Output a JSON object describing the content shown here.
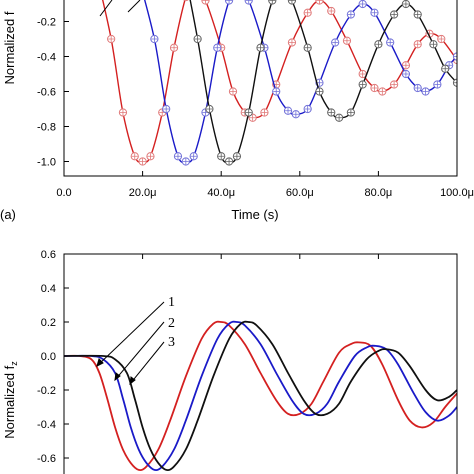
{
  "chart_data": [
    {
      "type": "line",
      "panel_label": "(a)",
      "xlabel": "Time (s)",
      "ylabel": "Normalized f",
      "xlim": [
        0,
        100
      ],
      "ylim": [
        -1.1,
        0
      ],
      "x_ticks": [
        0,
        20,
        40,
        60,
        80,
        100
      ],
      "x_tick_labels": [
        "0.0",
        "20.0μ",
        "40.0μ",
        "60.0μ",
        "80.0μ",
        "100.0μ"
      ],
      "y_ticks": [
        -0.2,
        -0.4,
        -0.6,
        -0.8,
        -1.0
      ],
      "y_tick_labels": [
        "-0.2",
        "-0.4",
        "-0.6",
        "-0.8",
        "-1.0"
      ],
      "marker": "circle-plus",
      "series": [
        {
          "color": "#d42020",
          "marker_color": "#e07878",
          "points": [
            [
              8,
              0.1
            ],
            [
              12,
              -0.3
            ],
            [
              15,
              -0.72
            ],
            [
              18,
              -0.97
            ],
            [
              20,
              -1.0
            ],
            [
              22,
              -0.97
            ],
            [
              25,
              -0.72
            ],
            [
              28,
              -0.35
            ],
            [
              31,
              -0.06
            ],
            [
              33,
              0.02
            ],
            [
              36,
              -0.08
            ],
            [
              40,
              -0.35
            ],
            [
              43,
              -0.6
            ],
            [
              46,
              -0.72
            ],
            [
              48,
              -0.75
            ],
            [
              51,
              -0.72
            ],
            [
              54,
              -0.56
            ],
            [
              58,
              -0.32
            ],
            [
              62,
              -0.15
            ],
            [
              65,
              -0.08
            ],
            [
              68,
              -0.14
            ],
            [
              72,
              -0.31
            ],
            [
              76,
              -0.5
            ],
            [
              79,
              -0.58
            ],
            [
              81,
              -0.6
            ],
            [
              84,
              -0.56
            ],
            [
              87,
              -0.45
            ],
            [
              90,
              -0.33
            ],
            [
              93,
              -0.27
            ],
            [
              96,
              -0.3
            ],
            [
              100,
              -0.42
            ]
          ]
        },
        {
          "color": "#1a1ac8",
          "marker_color": "#7070d8",
          "points": [
            [
              19,
              0.05
            ],
            [
              23,
              -0.3
            ],
            [
              26,
              -0.7
            ],
            [
              29,
              -0.97
            ],
            [
              31,
              -1.0
            ],
            [
              33,
              -0.97
            ],
            [
              36,
              -0.72
            ],
            [
              39,
              -0.35
            ],
            [
              42,
              -0.08
            ],
            [
              44,
              0.0
            ],
            [
              47,
              -0.08
            ],
            [
              51,
              -0.35
            ],
            [
              54,
              -0.6
            ],
            [
              57,
              -0.71
            ],
            [
              59,
              -0.73
            ],
            [
              62,
              -0.7
            ],
            [
              65,
              -0.55
            ],
            [
              69,
              -0.32
            ],
            [
              73,
              -0.16
            ],
            [
              76,
              -0.1
            ],
            [
              79,
              -0.15
            ],
            [
              83,
              -0.32
            ],
            [
              87,
              -0.5
            ],
            [
              90,
              -0.58
            ],
            [
              92,
              -0.6
            ],
            [
              95,
              -0.56
            ],
            [
              98,
              -0.45
            ],
            [
              100,
              -0.4
            ]
          ]
        },
        {
          "color": "#101010",
          "marker_color": "#606060",
          "points": [
            [
              31,
              0.05
            ],
            [
              34,
              -0.3
            ],
            [
              37,
              -0.7
            ],
            [
              40,
              -0.97
            ],
            [
              42,
              -1.0
            ],
            [
              44,
              -0.97
            ],
            [
              47,
              -0.72
            ],
            [
              50,
              -0.35
            ],
            [
              53,
              -0.08
            ],
            [
              55,
              0.0
            ],
            [
              58,
              -0.08
            ],
            [
              62,
              -0.35
            ],
            [
              65,
              -0.6
            ],
            [
              68,
              -0.72
            ],
            [
              70,
              -0.75
            ],
            [
              73,
              -0.72
            ],
            [
              76,
              -0.56
            ],
            [
              80,
              -0.33
            ],
            [
              84,
              -0.16
            ],
            [
              87,
              -0.1
            ],
            [
              90,
              -0.16
            ],
            [
              94,
              -0.33
            ],
            [
              97,
              -0.47
            ],
            [
              100,
              -0.55
            ]
          ]
        }
      ]
    },
    {
      "type": "line",
      "panel_label": "",
      "xlabel": "",
      "ylabel": "Normalized f",
      "ylabel_sub": "z",
      "xlim": [
        0,
        100
      ],
      "ylim": [
        -0.6,
        0.6
      ],
      "y_ticks": [
        0.6,
        0.4,
        0.2,
        0.0,
        -0.2,
        -0.4,
        -0.6
      ],
      "y_tick_labels": [
        "0.6",
        "0.4",
        "0.2",
        "0.0",
        "-0.2",
        "-0.4",
        "-0.6"
      ],
      "annotations": [
        "1",
        "2",
        "3"
      ],
      "series": [
        {
          "color": "#d42020",
          "points": [
            [
              0,
              0
            ],
            [
              4,
              0
            ],
            [
              7,
              -0.02
            ],
            [
              9,
              -0.1
            ],
            [
              11,
              -0.25
            ],
            [
              13,
              -0.42
            ],
            [
              15,
              -0.55
            ],
            [
              17,
              -0.63
            ],
            [
              19,
              -0.67
            ],
            [
              21,
              -0.65
            ],
            [
              24,
              -0.55
            ],
            [
              27,
              -0.38
            ],
            [
              31,
              -0.12
            ],
            [
              35,
              0.1
            ],
            [
              38,
              0.19
            ],
            [
              40,
              0.2
            ],
            [
              42,
              0.18
            ],
            [
              46,
              0.07
            ],
            [
              50,
              -0.1
            ],
            [
              54,
              -0.26
            ],
            [
              57,
              -0.34
            ],
            [
              60,
              -0.34
            ],
            [
              63,
              -0.28
            ],
            [
              66,
              -0.15
            ],
            [
              70,
              0.02
            ],
            [
              73,
              0.07
            ],
            [
              75,
              0.08
            ],
            [
              78,
              0.06
            ],
            [
              81,
              -0.05
            ],
            [
              85,
              -0.26
            ],
            [
              88,
              -0.38
            ],
            [
              91,
              -0.42
            ],
            [
              94,
              -0.39
            ],
            [
              97,
              -0.3
            ],
            [
              100,
              -0.22
            ]
          ]
        },
        {
          "color": "#1a1ac8",
          "points": [
            [
              0,
              0
            ],
            [
              7,
              0
            ],
            [
              10,
              -0.02
            ],
            [
              13,
              -0.1
            ],
            [
              15,
              -0.25
            ],
            [
              17,
              -0.42
            ],
            [
              19,
              -0.55
            ],
            [
              21,
              -0.63
            ],
            [
              23,
              -0.67
            ],
            [
              25,
              -0.65
            ],
            [
              28,
              -0.55
            ],
            [
              31,
              -0.38
            ],
            [
              35,
              -0.12
            ],
            [
              39,
              0.1
            ],
            [
              42,
              0.19
            ],
            [
              44,
              0.2
            ],
            [
              46,
              0.18
            ],
            [
              50,
              0.07
            ],
            [
              54,
              -0.1
            ],
            [
              58,
              -0.26
            ],
            [
              61,
              -0.34
            ],
            [
              64,
              -0.34
            ],
            [
              67,
              -0.28
            ],
            [
              70,
              -0.15
            ],
            [
              74,
              0.0
            ],
            [
              77,
              0.05
            ],
            [
              79,
              0.06
            ],
            [
              82,
              0.04
            ],
            [
              85,
              -0.05
            ],
            [
              89,
              -0.22
            ],
            [
              92,
              -0.33
            ],
            [
              95,
              -0.38
            ],
            [
              98,
              -0.35
            ],
            [
              100,
              -0.3
            ]
          ]
        },
        {
          "color": "#101010",
          "points": [
            [
              0,
              0
            ],
            [
              10,
              0
            ],
            [
              13,
              -0.02
            ],
            [
              16,
              -0.1
            ],
            [
              18,
              -0.25
            ],
            [
              20,
              -0.42
            ],
            [
              22,
              -0.55
            ],
            [
              24,
              -0.63
            ],
            [
              26,
              -0.67
            ],
            [
              28,
              -0.65
            ],
            [
              31,
              -0.55
            ],
            [
              34,
              -0.38
            ],
            [
              38,
              -0.12
            ],
            [
              42,
              0.1
            ],
            [
              45,
              0.19
            ],
            [
              47,
              0.2
            ],
            [
              49,
              0.18
            ],
            [
              53,
              0.07
            ],
            [
              57,
              -0.1
            ],
            [
              61,
              -0.26
            ],
            [
              64,
              -0.34
            ],
            [
              67,
              -0.34
            ],
            [
              70,
              -0.28
            ],
            [
              73,
              -0.15
            ],
            [
              77,
              -0.02
            ],
            [
              80,
              0.03
            ],
            [
              82,
              0.04
            ],
            [
              85,
              0.02
            ],
            [
              88,
              -0.06
            ],
            [
              92,
              -0.2
            ],
            [
              95,
              -0.26
            ],
            [
              98,
              -0.24
            ],
            [
              100,
              -0.2
            ]
          ]
        }
      ]
    }
  ]
}
